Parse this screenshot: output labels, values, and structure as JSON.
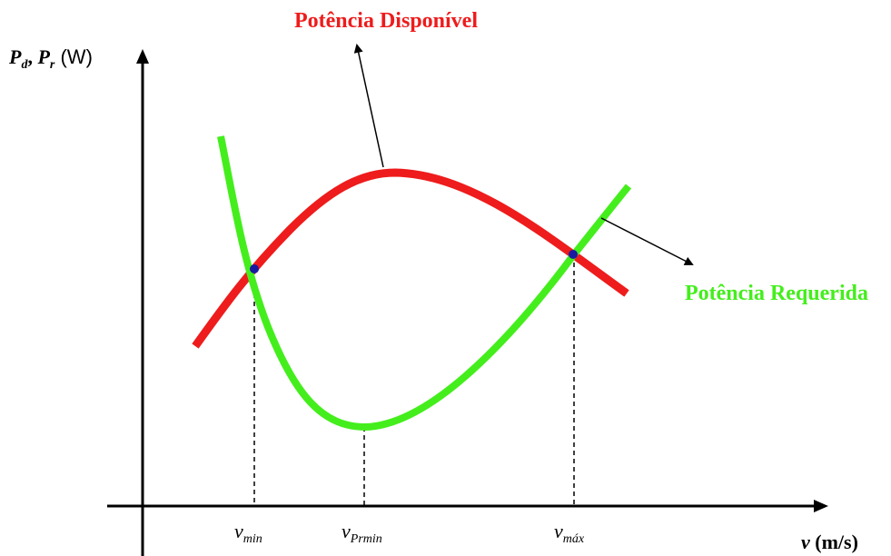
{
  "curves": [
    {
      "label": "Potência Disponível"
    },
    {
      "label": "Potência Requerida"
    }
  ],
  "axes": {
    "y": {
      "label": [
        "P",
        "d",
        ", ",
        "P",
        "r",
        " (W)"
      ]
    },
    "x": {
      "label": [
        "v",
        " (m/s)"
      ]
    }
  },
  "markers": [
    {
      "base": "v",
      "sub": "min"
    },
    {
      "base": "v",
      "sub": "Prmin"
    },
    {
      "base": "v",
      "sub": "máx"
    }
  ]
}
